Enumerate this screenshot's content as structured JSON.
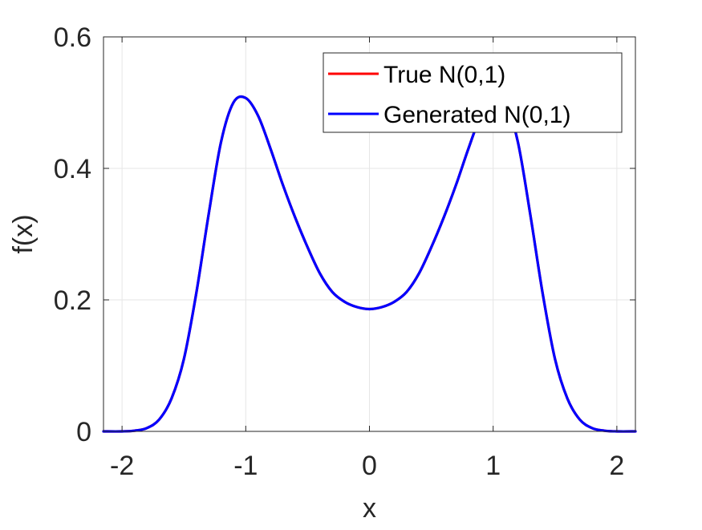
{
  "chart_data": {
    "type": "line",
    "title": "",
    "xlabel": "x",
    "ylabel": "f(x)",
    "xlim": [
      -2.15,
      2.15
    ],
    "ylim": [
      0,
      0.6
    ],
    "xticks": [
      -2,
      -1,
      0,
      1,
      2
    ],
    "xtick_labels": [
      "-2",
      "-1",
      "0",
      "1",
      "2"
    ],
    "yticks": [
      0,
      0.2,
      0.4,
      0.6
    ],
    "ytick_labels": [
      "0",
      "0.2",
      "0.4",
      "0.6"
    ],
    "grid": true,
    "legend": {
      "placement": "top-right"
    },
    "x": [
      -2.15,
      -2.0,
      -1.9,
      -1.8,
      -1.7,
      -1.6,
      -1.5,
      -1.4,
      -1.3,
      -1.2,
      -1.1,
      -1.0,
      -0.9,
      -0.8,
      -0.7,
      -0.6,
      -0.5,
      -0.4,
      -0.3,
      -0.2,
      -0.1,
      0.0,
      0.1,
      0.2,
      0.3,
      0.4,
      0.5,
      0.6,
      0.7,
      0.8,
      0.9,
      1.0,
      1.1,
      1.2,
      1.3,
      1.4,
      1.5,
      1.6,
      1.7,
      1.8,
      1.9,
      2.0,
      2.15
    ],
    "series": [
      {
        "name": "True N(0,1)",
        "color": "#ff0000",
        "values": [
          0.0,
          0.0,
          0.001,
          0.005,
          0.018,
          0.05,
          0.11,
          0.21,
          0.33,
          0.44,
          0.5,
          0.507,
          0.48,
          0.43,
          0.375,
          0.325,
          0.28,
          0.24,
          0.212,
          0.197,
          0.189,
          0.186,
          0.189,
          0.197,
          0.212,
          0.24,
          0.28,
          0.325,
          0.375,
          0.43,
          0.48,
          0.507,
          0.5,
          0.44,
          0.33,
          0.21,
          0.11,
          0.05,
          0.018,
          0.005,
          0.001,
          0.0,
          0.0
        ]
      },
      {
        "name": "Generated N(0,1)",
        "color": "#0000ff",
        "values": [
          0.0,
          0.0,
          0.001,
          0.005,
          0.018,
          0.05,
          0.11,
          0.21,
          0.33,
          0.44,
          0.5,
          0.507,
          0.48,
          0.43,
          0.375,
          0.325,
          0.28,
          0.24,
          0.212,
          0.197,
          0.189,
          0.186,
          0.189,
          0.197,
          0.212,
          0.24,
          0.28,
          0.325,
          0.375,
          0.43,
          0.48,
          0.507,
          0.5,
          0.44,
          0.33,
          0.21,
          0.11,
          0.05,
          0.018,
          0.005,
          0.001,
          0.0,
          0.0
        ]
      }
    ]
  }
}
